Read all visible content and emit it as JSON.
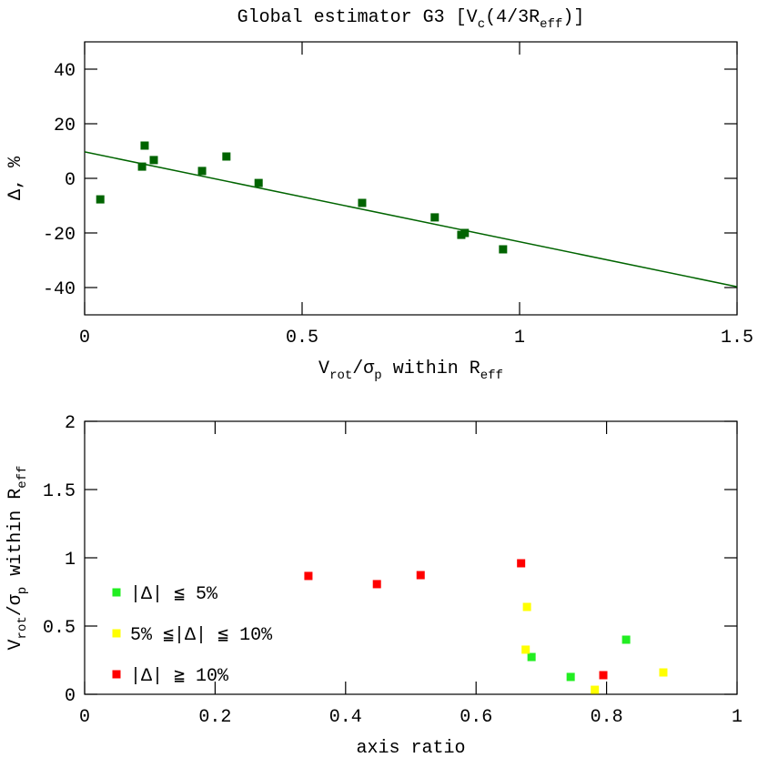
{
  "chart_data": [
    {
      "type": "scatter",
      "title": [
        "Global estimator G3 [V",
        {
          "sub": "c"
        },
        "(4/3R",
        {
          "sub": "eff"
        },
        ")]"
      ],
      "x_label": [
        "V",
        {
          "sub": "rot"
        },
        "/σ",
        {
          "sub": "p"
        },
        " within R",
        {
          "sub": "eff"
        }
      ],
      "y_label": [
        "Δ, %"
      ],
      "x": [
        0.036,
        0.132,
        0.138,
        0.159,
        0.27,
        0.326,
        0.4,
        0.638,
        0.805,
        0.866,
        0.874,
        0.962
      ],
      "values": [
        -7.7,
        4.3,
        12,
        6.7,
        2.7,
        8,
        -1.7,
        -9,
        -14.3,
        -20.7,
        -20,
        -26
      ],
      "color": "#006400",
      "fit": {
        "x": [
          0,
          1.5
        ],
        "values": [
          9.7,
          -39.7
        ],
        "color": "#006400"
      },
      "xlim": [
        0,
        1.5
      ],
      "xticks": [
        0,
        0.5,
        1,
        1.5
      ],
      "ylim": [
        -50,
        50
      ],
      "yticks": [
        -40,
        -20,
        0,
        20,
        40
      ]
    },
    {
      "type": "scatter",
      "x_label": [
        "axis ratio"
      ],
      "y_label": [
        "V",
        {
          "sub": "rot"
        },
        "/σ",
        {
          "sub": "p"
        },
        " within R",
        {
          "sub": "eff"
        }
      ],
      "series": [
        {
          "name": "|Δ| ≦ 5%",
          "color": "#22ee22",
          "x": [
            0.745,
            0.685,
            0.83
          ],
          "values": [
            0.127,
            0.273,
            0.4
          ]
        },
        {
          "name": "5% ≦|Δ| ≦ 10%",
          "color": "#ffff00",
          "x": [
            0.678,
            0.676,
            0.782,
            0.887
          ],
          "values": [
            0.64,
            0.327,
            0.033,
            0.16
          ]
        },
        {
          "name": "|Δ| ≧ 10%",
          "color": "#ff0000",
          "x": [
            0.343,
            0.448,
            0.515,
            0.669,
            0.795
          ],
          "values": [
            0.867,
            0.807,
            0.873,
            0.96,
            0.14
          ]
        }
      ],
      "legend_position": "left",
      "xlim": [
        0,
        1
      ],
      "xticks": [
        0,
        0.2,
        0.4,
        0.6,
        0.8,
        1
      ],
      "ylim": [
        0,
        2
      ],
      "yticks": [
        0,
        0.5,
        1,
        1.5,
        2
      ]
    }
  ]
}
